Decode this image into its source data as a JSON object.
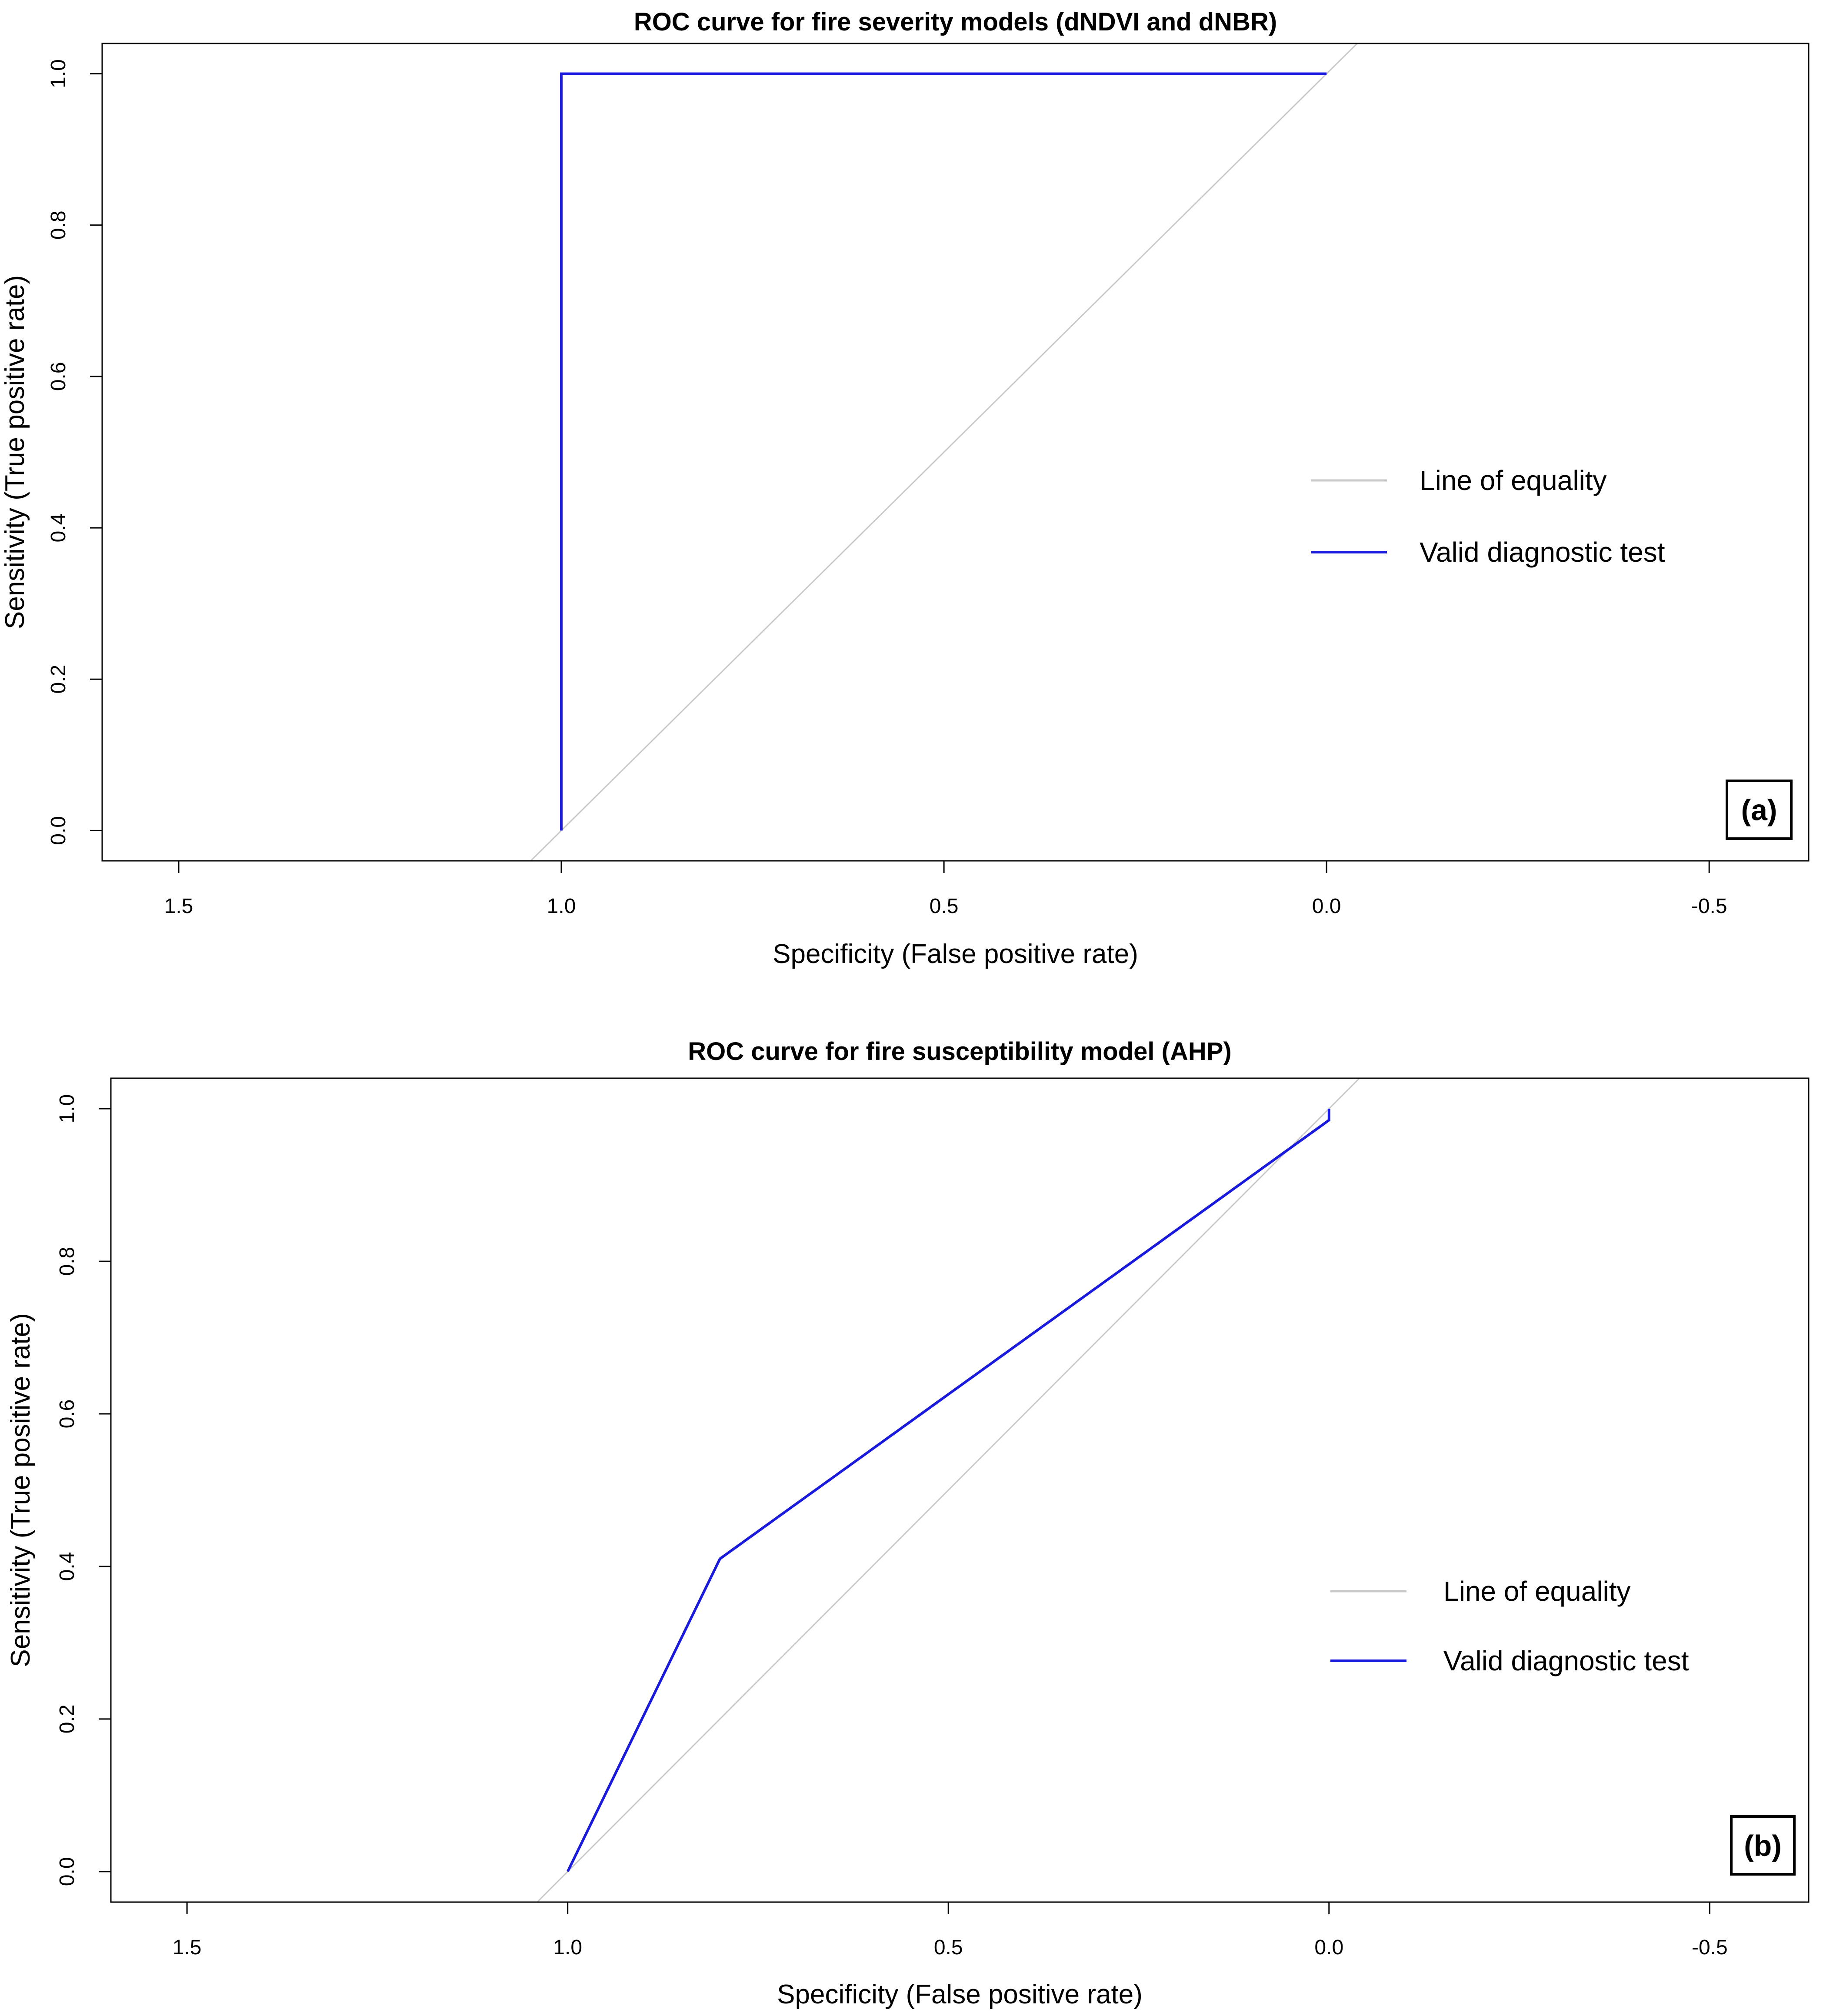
{
  "chart_data": [
    {
      "type": "line",
      "title": "ROC curve for fire severity models (dNDVI and dNBR)",
      "xlabel": "Specificity (False positive rate)",
      "ylabel": "Sensitivity (True positive rate)",
      "xlim": [
        1.6,
        -0.63
      ],
      "ylim": [
        -0.04,
        1.04
      ],
      "x_ticks": [
        1.5,
        1.0,
        0.5,
        0.0,
        -0.5
      ],
      "x_tick_labels": [
        "1.5",
        "1.0",
        "0.5",
        "0.0",
        "-0.5"
      ],
      "y_ticks": [
        0.0,
        0.2,
        0.4,
        0.6,
        0.8,
        1.0
      ],
      "y_tick_labels": [
        "0.0",
        "0.2",
        "0.4",
        "0.6",
        "0.8",
        "1.0"
      ],
      "legend_position": "right",
      "panel_tag": "(a)",
      "series": [
        {
          "name": "Line of equality",
          "color": "#c8c8c8",
          "x": [
            1.04,
            -0.04
          ],
          "y": [
            -0.04,
            1.04
          ]
        },
        {
          "name": "Valid diagnostic test",
          "color": "#1a1adc",
          "x": [
            1.0,
            1.0,
            0.0
          ],
          "y": [
            0.0,
            1.0,
            1.0
          ]
        }
      ]
    },
    {
      "type": "line",
      "title": "ROC curve for fire susceptibility model (AHP)",
      "xlabel": "Specificity (False positive rate)",
      "ylabel": "Sensitivity (True positive rate)",
      "xlim": [
        1.6,
        -0.63
      ],
      "ylim": [
        -0.04,
        1.04
      ],
      "x_ticks": [
        1.5,
        1.0,
        0.5,
        0.0,
        -0.5
      ],
      "x_tick_labels": [
        "1.5",
        "1.0",
        "0.5",
        "0.0",
        "-0.5"
      ],
      "y_ticks": [
        0.0,
        0.2,
        0.4,
        0.6,
        0.8,
        1.0
      ],
      "y_tick_labels": [
        "0.0",
        "0.2",
        "0.4",
        "0.6",
        "0.8",
        "1.0"
      ],
      "legend_position": "right",
      "panel_tag": "(b)",
      "series": [
        {
          "name": "Line of equality",
          "color": "#c8c8c8",
          "x": [
            1.04,
            -0.04
          ],
          "y": [
            -0.04,
            1.04
          ]
        },
        {
          "name": "Valid diagnostic test",
          "color": "#1a1adc",
          "x": [
            1.0,
            0.8,
            0.0,
            0.0
          ],
          "y": [
            0.0,
            0.41,
            0.985,
            1.0
          ]
        }
      ]
    }
  ]
}
